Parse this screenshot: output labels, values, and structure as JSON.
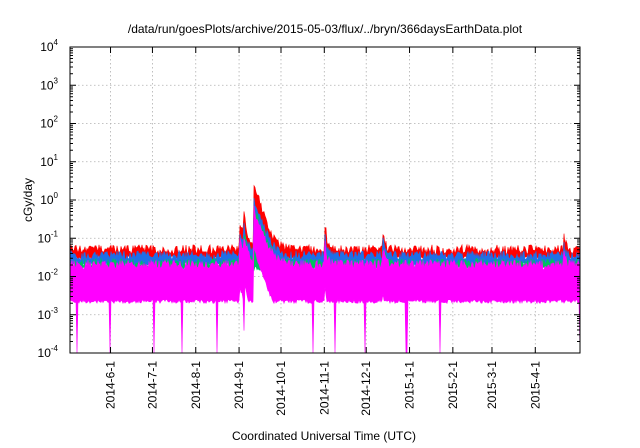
{
  "chart_data": {
    "type": "area",
    "title": "/data/run/goesPlots/archive/2015-05-03/flux/../bryn/366daysEarthData.plot",
    "xlabel": "Coordinated Universal Time (UTC)",
    "ylabel": "cGy/day",
    "y_scale": "log",
    "ylim": [
      0.0001,
      10000
    ],
    "y_ticks": [
      {
        "value": 0.0001,
        "base": "10",
        "exp": "-4"
      },
      {
        "value": 0.001,
        "base": "10",
        "exp": "-3"
      },
      {
        "value": 0.01,
        "base": "10",
        "exp": "-2"
      },
      {
        "value": 0.1,
        "base": "10",
        "exp": "-1"
      },
      {
        "value": 1,
        "base": "10",
        "exp": "0"
      },
      {
        "value": 10,
        "base": "10",
        "exp": "1"
      },
      {
        "value": 100,
        "base": "10",
        "exp": "2"
      },
      {
        "value": 1000,
        "base": "10",
        "exp": "3"
      },
      {
        "value": 10000,
        "base": "10",
        "exp": "4"
      }
    ],
    "xlim": [
      "2014-05-03",
      "2015-05-03"
    ],
    "x_ticks": [
      {
        "date": "2014-06-01",
        "label": "2014-6-1"
      },
      {
        "date": "2014-07-01",
        "label": "2014-7-1"
      },
      {
        "date": "2014-08-01",
        "label": "2014-8-1"
      },
      {
        "date": "2014-09-01",
        "label": "2014-9-1"
      },
      {
        "date": "2014-10-01",
        "label": "2014-10-1"
      },
      {
        "date": "2014-11-01",
        "label": "2014-11-1"
      },
      {
        "date": "2014-12-01",
        "label": "2014-12-1"
      },
      {
        "date": "2015-01-01",
        "label": "2015-1-1"
      },
      {
        "date": "2015-02-01",
        "label": "2015-2-1"
      },
      {
        "date": "2015-03-01",
        "label": "2015-3-1"
      },
      {
        "date": "2015-04-01",
        "label": "2015-4-1"
      }
    ],
    "grid": true,
    "legend": "none",
    "series": [
      {
        "color": "#ff0000",
        "baseline": 0.05,
        "floor": 0.03
      },
      {
        "color": "#1f6fe8",
        "baseline": 0.035,
        "floor": 0.02
      },
      {
        "color": "#00c060",
        "baseline": 0.022,
        "floor": 0.016
      },
      {
        "color": "#ff00ff",
        "baseline": 0.02,
        "floor": 0.0022
      }
    ],
    "events": [
      {
        "date": "2014-09-01",
        "days": 4,
        "peak": 0.3
      },
      {
        "date": "2014-09-04",
        "days": 3,
        "peak": 0.5
      },
      {
        "date": "2014-09-11",
        "days": 6,
        "peak": 3.0
      },
      {
        "date": "2014-09-16",
        "days": 4,
        "peak": 0.15
      },
      {
        "date": "2014-09-22",
        "days": 2,
        "peak": 0.12
      },
      {
        "date": "2014-11-01",
        "days": 2,
        "peak": 0.3
      },
      {
        "date": "2014-12-13",
        "days": 2,
        "peak": 0.16
      },
      {
        "date": "2015-04-21",
        "days": 2,
        "peak": 0.13
      }
    ]
  }
}
